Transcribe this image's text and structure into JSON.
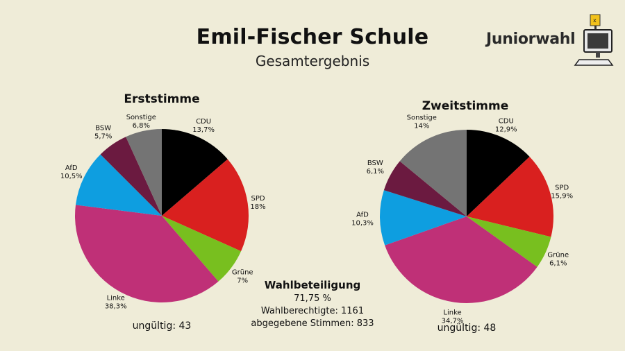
{
  "header": {
    "title": "Emil-Fischer Schule",
    "subtitle": "Gesamtergebnis",
    "logo_text": "Juniorwahl"
  },
  "chart_data": [
    {
      "type": "pie",
      "title": "Erststimme",
      "slices": [
        {
          "label": "CDU",
          "value_text": "13,7%",
          "value": 13.7,
          "color": "#000000"
        },
        {
          "label": "SPD",
          "value_text": "18%",
          "value": 18.0,
          "color": "#d9201f"
        },
        {
          "label": "Grüne",
          "value_text": "7%",
          "value": 7.0,
          "color": "#78bf1f"
        },
        {
          "label": "Linke",
          "value_text": "38,3%",
          "value": 38.3,
          "color": "#bf3077"
        },
        {
          "label": "AfD",
          "value_text": "10,5%",
          "value": 10.5,
          "color": "#0e9ee0"
        },
        {
          "label": "BSW",
          "value_text": "5,7%",
          "value": 5.7,
          "color": "#6b1a40"
        },
        {
          "label": "Sonstige",
          "value_text": "6,8%",
          "value": 6.8,
          "color": "#747474"
        }
      ],
      "footer": "ungültig: 43"
    },
    {
      "type": "pie",
      "title": "Zweitstimme",
      "slices": [
        {
          "label": "CDU",
          "value_text": "12,9%",
          "value": 12.9,
          "color": "#000000"
        },
        {
          "label": "SPD",
          "value_text": "15,9%",
          "value": 15.9,
          "color": "#d9201f"
        },
        {
          "label": "Grüne",
          "value_text": "6,1%",
          "value": 6.1,
          "color": "#78bf1f"
        },
        {
          "label": "Linke",
          "value_text": "34,7%",
          "value": 34.7,
          "color": "#bf3077"
        },
        {
          "label": "AfD",
          "value_text": "10,3%",
          "value": 10.3,
          "color": "#0e9ee0"
        },
        {
          "label": "BSW",
          "value_text": "6,1%",
          "value": 6.1,
          "color": "#6b1a40"
        },
        {
          "label": "Sonstige",
          "value_text": "14%",
          "value": 14.0,
          "color": "#747474"
        }
      ],
      "footer": "ungültig: 48"
    }
  ],
  "turnout": {
    "heading": "Wahlbeteiligung",
    "percent": "71,75 %",
    "eligible": "Wahlberechtigte: 1161",
    "cast": "abgegebene Stimmen: 833"
  }
}
